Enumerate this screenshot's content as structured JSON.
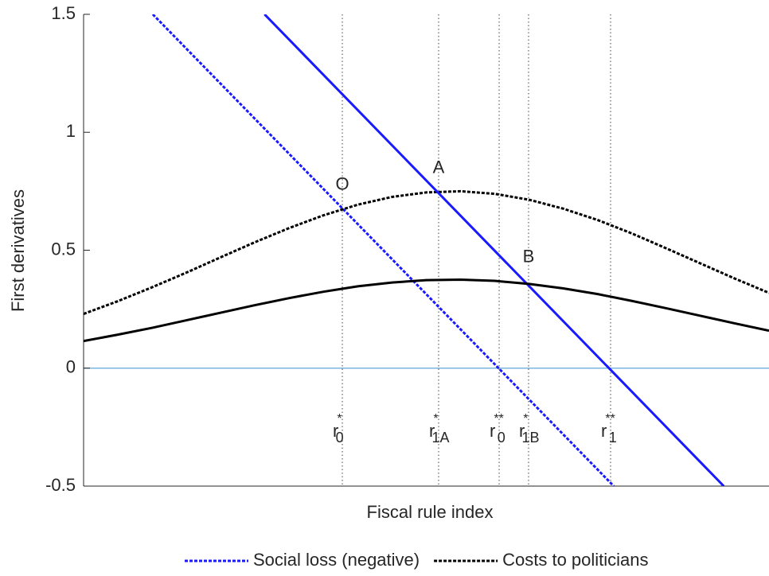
{
  "chart_data": {
    "type": "line",
    "xlabel": "Fiscal rule index",
    "ylabel": "First derivatives",
    "xlim": [
      0,
      10
    ],
    "ylim": [
      -0.5,
      1.5
    ],
    "yticks": [
      -0.5,
      0,
      0.5,
      1,
      1.5
    ],
    "legend": "bottom",
    "hline": {
      "value": 0,
      "color": "#7ab6df"
    },
    "series": [
      {
        "name": "Social loss (negative)",
        "color": "#1a1aff",
        "dash": true,
        "x": [
          1.01,
          7.735
        ],
        "values": [
          1.5,
          -0.5
        ]
      },
      {
        "name": "Costs to politicians",
        "color": "#000000",
        "dash": true,
        "x": [
          0,
          0.5,
          1,
          1.5,
          2,
          2.5,
          3,
          3.5,
          4,
          4.5,
          5,
          5.5,
          6,
          6.5,
          7,
          7.5,
          8,
          8.5,
          9,
          9.5,
          10
        ],
        "values": [
          0.23,
          0.284,
          0.343,
          0.405,
          0.47,
          0.534,
          0.594,
          0.648,
          0.693,
          0.726,
          0.745,
          0.75,
          0.739,
          0.714,
          0.676,
          0.628,
          0.571,
          0.508,
          0.444,
          0.38,
          0.319
        ]
      },
      {
        "color": "#1a1aff",
        "dash": false,
        "x": [
          2.64,
          9.34
        ],
        "values": [
          1.5,
          -0.5
        ]
      },
      {
        "color": "#000000",
        "dash": false,
        "x": [
          0,
          0.5,
          1,
          1.5,
          2,
          2.5,
          3,
          3.5,
          4,
          4.5,
          5,
          5.5,
          6,
          6.5,
          7,
          7.5,
          8,
          8.5,
          9,
          9.5,
          10
        ],
        "values": [
          0.115,
          0.142,
          0.171,
          0.203,
          0.235,
          0.267,
          0.297,
          0.324,
          0.347,
          0.363,
          0.373,
          0.375,
          0.37,
          0.357,
          0.338,
          0.314,
          0.285,
          0.254,
          0.222,
          0.19,
          0.159
        ]
      }
    ],
    "vlines": [
      {
        "x": 3.775,
        "base": "r",
        "sup": "*",
        "sub": "0"
      },
      {
        "x": 5.18,
        "base": "r",
        "sup": "*",
        "sub": "1A"
      },
      {
        "x": 6.063,
        "base": "r",
        "sup": "**",
        "sub": "0"
      },
      {
        "x": 6.492,
        "base": "r",
        "sup": "*",
        "sub": "1B"
      },
      {
        "x": 7.689,
        "base": "r",
        "sup": "**",
        "sub": "1"
      }
    ],
    "annotations": [
      {
        "text": "O",
        "x": 3.775,
        "y": 0.776
      },
      {
        "text": "A",
        "x": 5.18,
        "y": 0.846
      },
      {
        "text": "B",
        "x": 6.492,
        "y": 0.469
      }
    ]
  }
}
